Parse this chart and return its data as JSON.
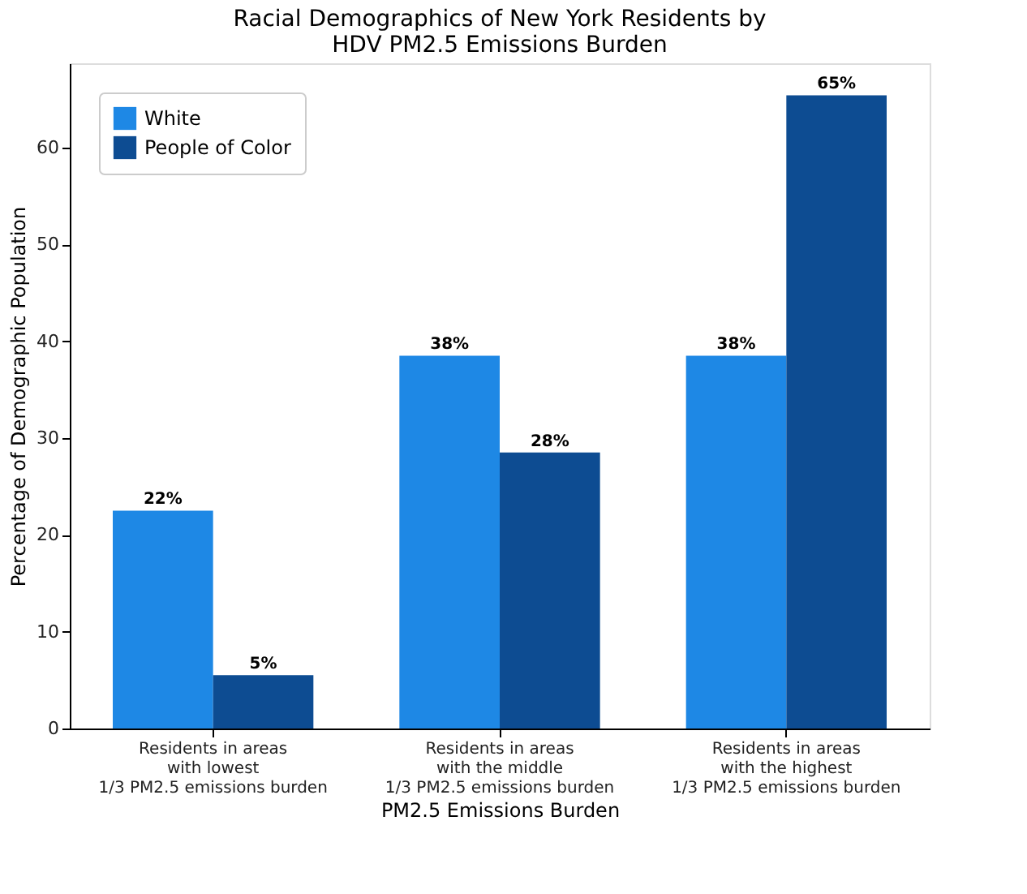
{
  "chart_data": {
    "type": "bar",
    "title": "Racial Demographics of New York Residents by\nHDV PM2.5 Emissions Burden",
    "xlabel": "PM2.5 Emissions Burden",
    "ylabel": "Percentage of Demographic Population",
    "categories": [
      "Residents in areas\nwith lowest\n1/3 PM2.5 emissions burden",
      "Residents in areas\nwith the middle\n1/3 PM2.5 emissions burden",
      "Residents in areas\nwith the highest\n1/3 PM2.5 emissions burden"
    ],
    "series": [
      {
        "name": "White",
        "color": "#1e88e5",
        "values": [
          22.5,
          38.5,
          38.5
        ],
        "value_labels": [
          "22%",
          "38%",
          "38%"
        ]
      },
      {
        "name": "People of Color",
        "color": "#0d4c92",
        "values": [
          5.5,
          28.5,
          65.4
        ],
        "value_labels": [
          "5%",
          "28%",
          "65%"
        ]
      }
    ],
    "ylim": [
      0,
      68.7
    ],
    "yticks": [
      0,
      10,
      20,
      30,
      40,
      50,
      60
    ],
    "grid": false,
    "legend": "top left"
  }
}
